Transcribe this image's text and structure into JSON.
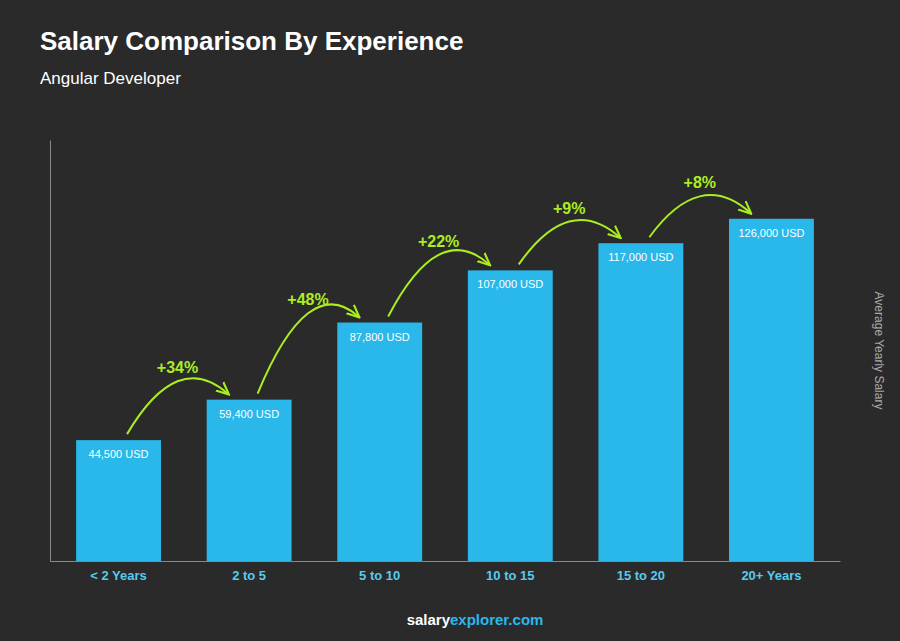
{
  "chart_data": {
    "type": "bar",
    "title": "Salary Comparison By Experience",
    "subtitle": "Angular Developer",
    "categories": [
      "< 2 Years",
      "2 to 5",
      "5 to 10",
      "10 to 15",
      "15 to 20",
      "20+ Years"
    ],
    "values": [
      44500,
      59400,
      87800,
      107000,
      117000,
      126000
    ],
    "value_labels": [
      "44,500 USD",
      "59,400 USD",
      "87,800 USD",
      "107,000 USD",
      "117,000 USD",
      "126,000 USD"
    ],
    "data_labels": true,
    "color": "#2ab8ea",
    "ylabel": "Average Yearly Salary",
    "ylim": [
      0,
      155000
    ],
    "tick_labels": "x",
    "annotations": [
      {
        "text": "+34%",
        "color": "#aaee22"
      },
      {
        "text": "+48%",
        "color": "#aaee22"
      },
      {
        "text": "+22%",
        "color": "#aaee22"
      },
      {
        "text": "+9%",
        "color": "#aaee22"
      },
      {
        "text": "+8%",
        "color": "#aaee22"
      }
    ],
    "footer": [
      {
        "text": "salary",
        "color": "#ffffff"
      },
      {
        "text": "explorer.com",
        "color": "#2ab8ea"
      }
    ]
  }
}
